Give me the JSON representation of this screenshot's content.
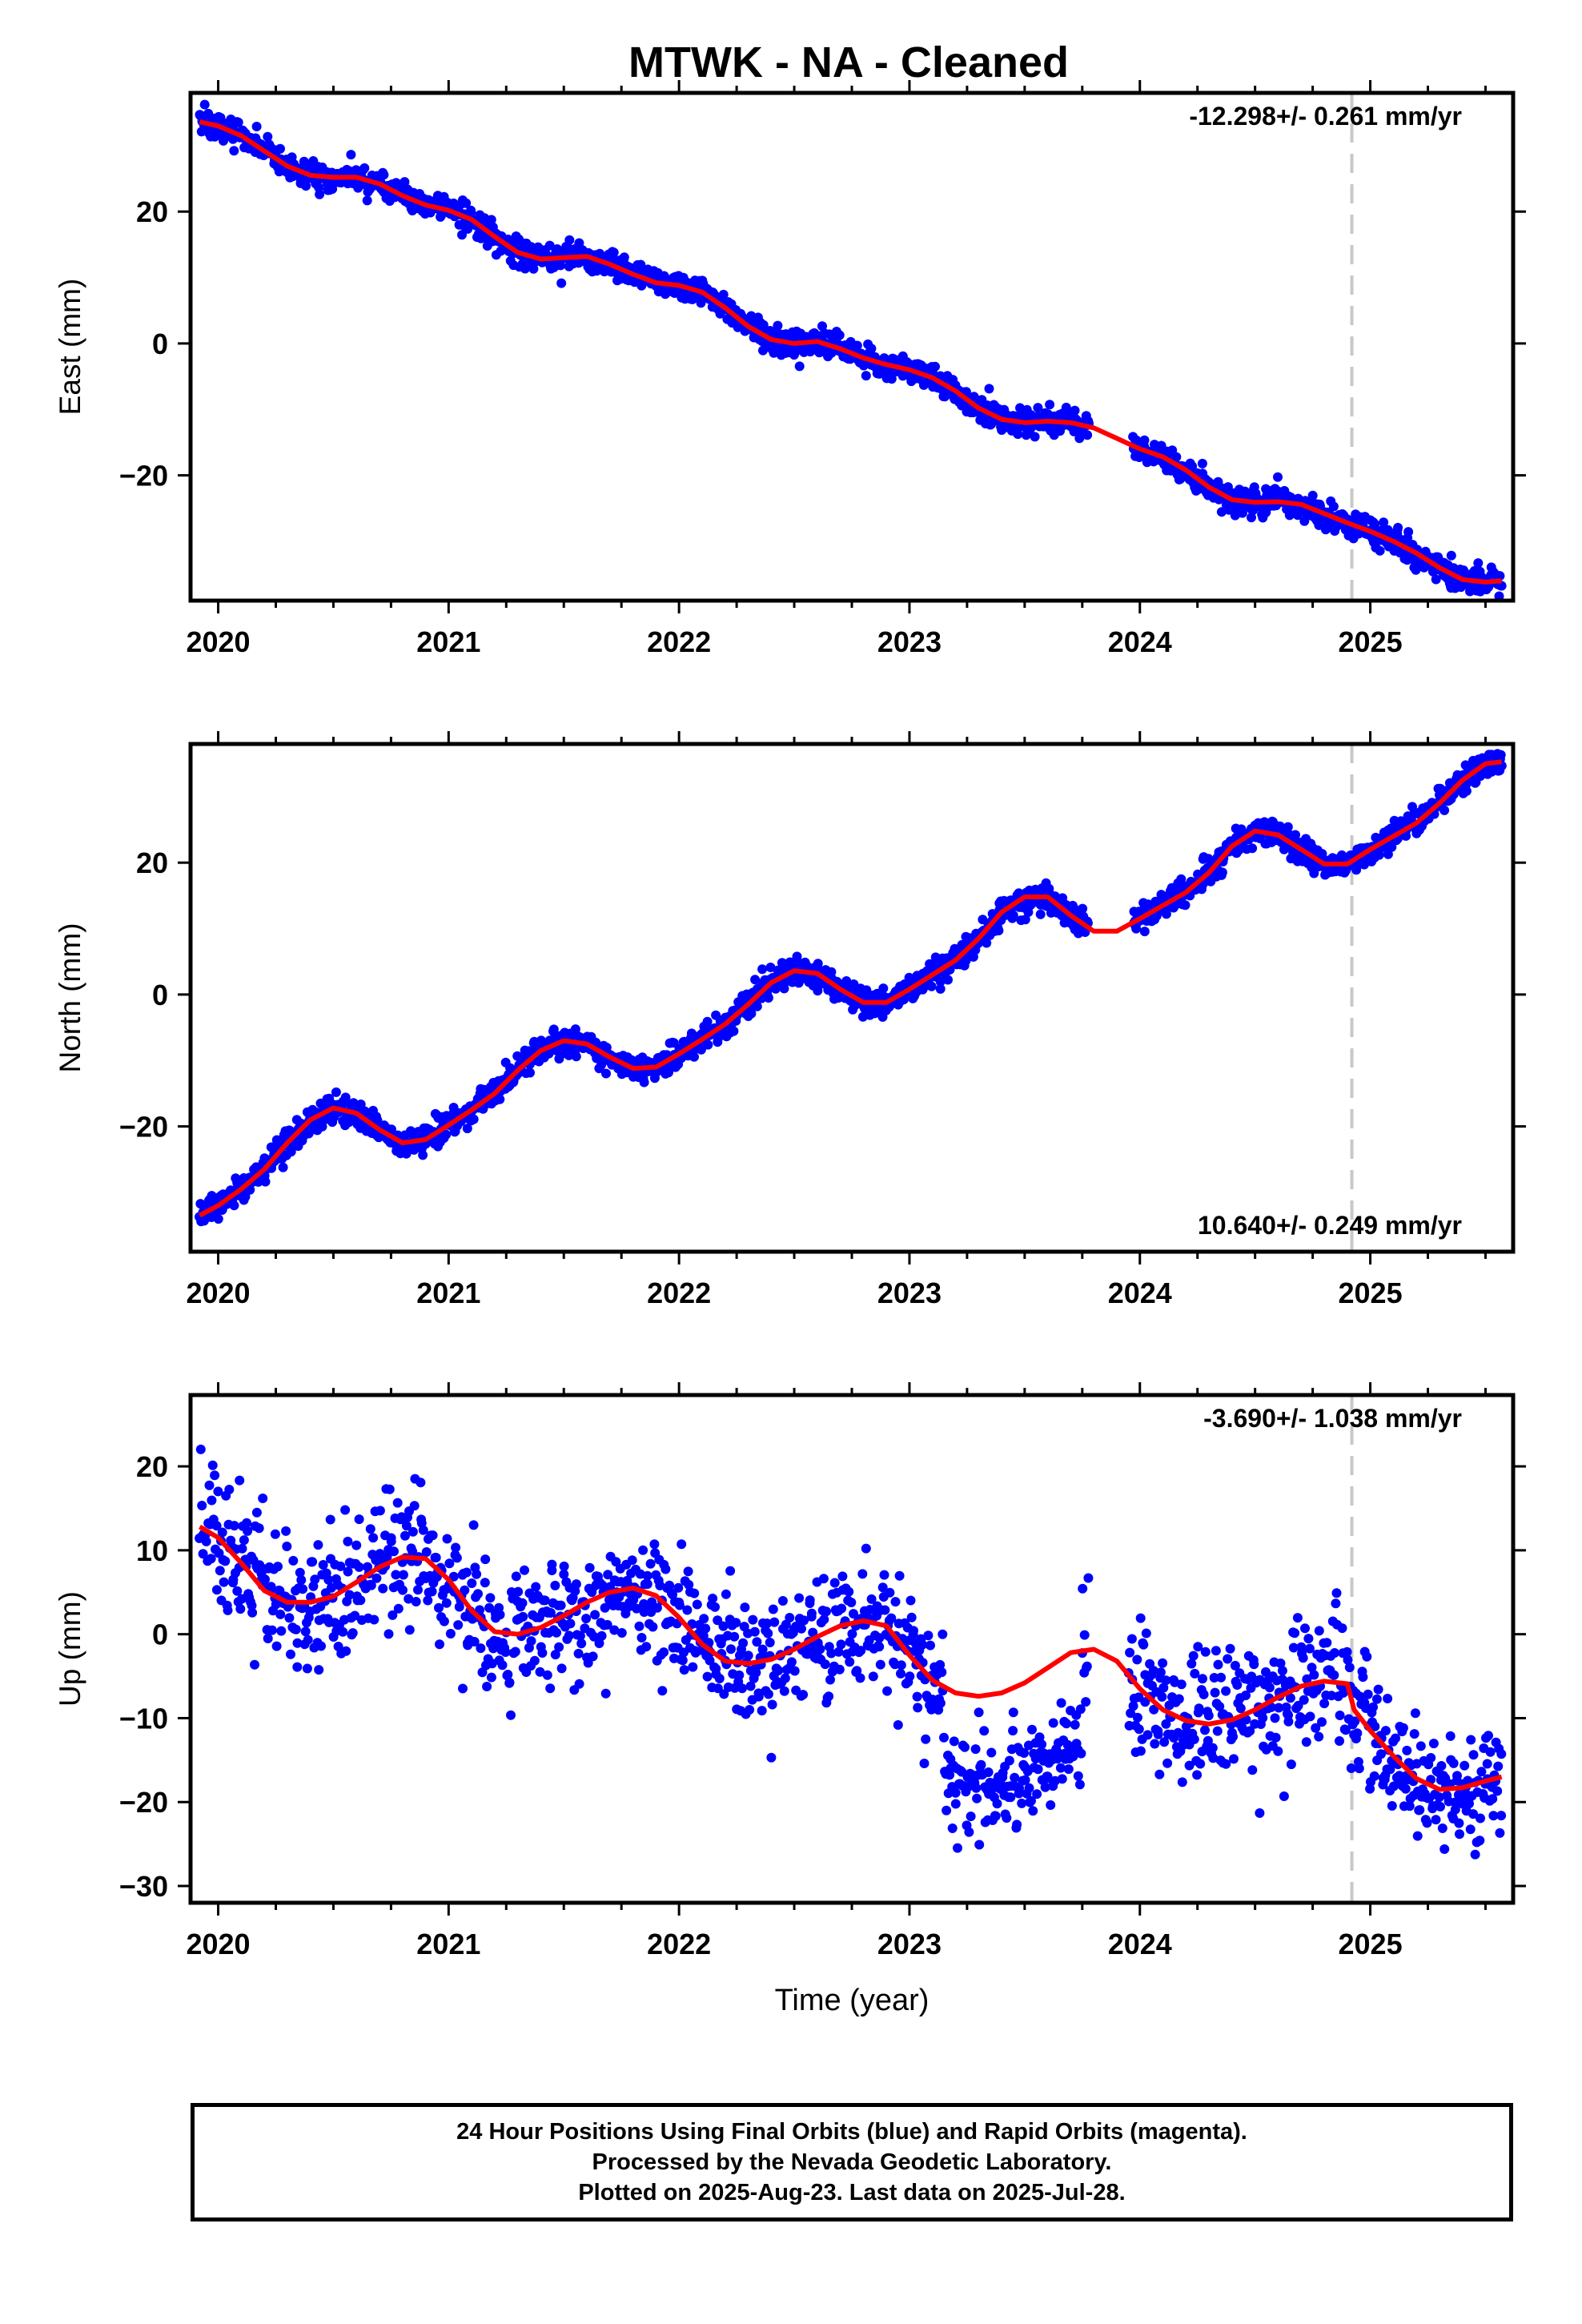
{
  "title": "MTWK  - NA - Cleaned",
  "footer": {
    "line1": "24 Hour Positions Using Final Orbits (blue) and Rapid Orbits (magenta).",
    "line2": "Processed by the Nevada Geodetic Laboratory.",
    "line3": "Plotted on 2025-Aug-23. Last data on 2025-Jul-28."
  },
  "colors": {
    "points": "#0000ff",
    "fit": "#ff0000",
    "marker_line": "#c8c8c8",
    "frame": "#000000"
  },
  "chart_data": [
    {
      "type": "scatter",
      "name": "east",
      "ylabel": "East (mm)",
      "xlabel": "",
      "xlim": [
        2019.88,
        2025.62
      ],
      "ylim": [
        -39,
        38
      ],
      "x_ticks": [
        2020,
        2021,
        2022,
        2023,
        2024,
        2025
      ],
      "y_ticks": [
        -20,
        0,
        20
      ],
      "rate_label": "-12.298+/- 0.261 mm/yr",
      "rate_position": "top-right",
      "vline_x": 2024.92,
      "data_range": [
        2019.92,
        2025.57
      ],
      "gap": [
        2023.78,
        2023.97
      ],
      "fit_curve": {
        "x": [
          2019.92,
          2020.0,
          2020.1,
          2020.2,
          2020.3,
          2020.4,
          2020.5,
          2020.6,
          2020.7,
          2020.8,
          2020.9,
          2021.0,
          2021.1,
          2021.2,
          2021.3,
          2021.4,
          2021.5,
          2021.6,
          2021.7,
          2021.8,
          2021.9,
          2022.0,
          2022.1,
          2022.2,
          2022.3,
          2022.4,
          2022.5,
          2022.6,
          2022.7,
          2022.8,
          2022.9,
          2023.0,
          2023.1,
          2023.2,
          2023.3,
          2023.4,
          2023.5,
          2023.6,
          2023.7,
          2023.8,
          2023.9,
          2024.0,
          2024.1,
          2024.2,
          2024.3,
          2024.4,
          2024.5,
          2024.6,
          2024.7,
          2024.8,
          2024.9,
          2025.0,
          2025.1,
          2025.2,
          2025.3,
          2025.4,
          2025.5,
          2025.57
        ],
        "y": [
          33.6,
          33.0,
          31.5,
          29.2,
          26.9,
          25.5,
          25.2,
          25.2,
          24.2,
          22.4,
          21.0,
          20.2,
          18.8,
          16.2,
          13.8,
          12.8,
          13.0,
          13.2,
          12.0,
          10.5,
          9.2,
          8.8,
          7.8,
          5.4,
          2.6,
          0.6,
          0.0,
          0.3,
          -0.8,
          -2.2,
          -3.2,
          -4.0,
          -5.2,
          -7.2,
          -9.8,
          -11.5,
          -12.0,
          -11.8,
          -12.0,
          -12.8,
          -14.4,
          -16.0,
          -17.2,
          -19.2,
          -21.8,
          -23.7,
          -24.1,
          -24.0,
          -24.4,
          -25.8,
          -27.2,
          -28.5,
          -30.0,
          -31.8,
          -34.0,
          -35.8,
          -36.2,
          -36.0
        ]
      },
      "points": {
        "count": 1900,
        "scatter_mm": 1.0
      }
    },
    {
      "type": "scatter",
      "name": "north",
      "ylabel": "North (mm)",
      "xlabel": "",
      "xlim": [
        2019.88,
        2025.62
      ],
      "ylim": [
        -39,
        38
      ],
      "x_ticks": [
        2020,
        2021,
        2022,
        2023,
        2024,
        2025
      ],
      "y_ticks": [
        -20,
        0,
        20
      ],
      "rate_label": "10.640+/- 0.249 mm/yr",
      "rate_position": "bottom-right",
      "vline_x": 2024.92,
      "data_range": [
        2019.92,
        2025.57
      ],
      "gap": [
        2023.78,
        2023.97
      ],
      "fit_curve": {
        "x": [
          2019.92,
          2020.0,
          2020.1,
          2020.2,
          2020.3,
          2020.4,
          2020.5,
          2020.6,
          2020.7,
          2020.8,
          2020.9,
          2021.0,
          2021.1,
          2021.2,
          2021.3,
          2021.4,
          2021.5,
          2021.6,
          2021.7,
          2021.8,
          2021.9,
          2022.0,
          2022.1,
          2022.2,
          2022.3,
          2022.4,
          2022.5,
          2022.6,
          2022.7,
          2022.8,
          2022.9,
          2023.0,
          2023.1,
          2023.2,
          2023.3,
          2023.4,
          2023.5,
          2023.6,
          2023.7,
          2023.8,
          2023.9,
          2024.0,
          2024.1,
          2024.2,
          2024.3,
          2024.4,
          2024.5,
          2024.6,
          2024.7,
          2024.8,
          2024.9,
          2025.0,
          2025.1,
          2025.2,
          2025.3,
          2025.4,
          2025.5,
          2025.57
        ],
        "y": [
          -33.5,
          -32.0,
          -29.5,
          -26.5,
          -22.5,
          -19.0,
          -17.2,
          -18.0,
          -20.5,
          -22.5,
          -22.0,
          -19.8,
          -17.5,
          -15.0,
          -11.5,
          -8.5,
          -7.0,
          -7.5,
          -9.5,
          -11.2,
          -11.0,
          -9.0,
          -6.8,
          -4.5,
          -1.5,
          1.8,
          3.6,
          3.2,
          0.8,
          -1.2,
          -1.2,
          0.8,
          3.0,
          5.2,
          8.5,
          12.5,
          14.8,
          14.8,
          12.0,
          9.6,
          9.6,
          11.5,
          13.5,
          15.5,
          18.5,
          22.5,
          24.8,
          24.2,
          22.0,
          19.8,
          19.8,
          22.0,
          24.0,
          26.0,
          29.0,
          32.5,
          35.0,
          35.3
        ]
      },
      "points": {
        "count": 1900,
        "scatter_mm": 1.0
      }
    },
    {
      "type": "scatter",
      "name": "up",
      "ylabel": "Up (mm)",
      "xlabel": "Time (year)",
      "xlim": [
        2019.88,
        2025.62
      ],
      "ylim": [
        -32,
        28.5
      ],
      "x_ticks": [
        2020,
        2021,
        2022,
        2023,
        2024,
        2025
      ],
      "y_ticks": [
        -30,
        -20,
        -10,
        0,
        10,
        20
      ],
      "rate_label": "-3.690+/- 1.038 mm/yr",
      "rate_position": "top-right",
      "vline_x": 2024.92,
      "data_range": [
        2019.92,
        2025.57
      ],
      "gap": [
        2023.78,
        2023.95
      ],
      "fit_curve": {
        "x": [
          2019.92,
          2020.0,
          2020.1,
          2020.2,
          2020.3,
          2020.4,
          2020.5,
          2020.6,
          2020.7,
          2020.8,
          2020.9,
          2021.0,
          2021.1,
          2021.2,
          2021.3,
          2021.4,
          2021.5,
          2021.6,
          2021.7,
          2021.8,
          2021.9,
          2022.0,
          2022.1,
          2022.2,
          2022.3,
          2022.4,
          2022.5,
          2022.6,
          2022.7,
          2022.8,
          2022.9,
          2023.0,
          2023.1,
          2023.2,
          2023.3,
          2023.4,
          2023.5,
          2023.6,
          2023.7,
          2023.8,
          2023.9,
          2024.0,
          2024.1,
          2024.2,
          2024.3,
          2024.4,
          2024.5,
          2024.6,
          2024.7,
          2024.8,
          2024.9,
          2024.93,
          2025.0,
          2025.1,
          2025.2,
          2025.3,
          2025.4,
          2025.5,
          2025.57
        ],
        "y": [
          12.8,
          11.5,
          8.5,
          5.2,
          3.8,
          3.8,
          4.5,
          6.2,
          8.0,
          9.2,
          9.0,
          6.5,
          2.8,
          0.3,
          0.0,
          0.8,
          2.2,
          3.8,
          5.0,
          5.5,
          4.6,
          2.0,
          -1.2,
          -3.2,
          -3.5,
          -3.0,
          -1.8,
          -0.3,
          1.0,
          1.6,
          1.0,
          -2.5,
          -5.5,
          -7.0,
          -7.4,
          -7.0,
          -5.8,
          -4.0,
          -2.2,
          -1.8,
          -3.2,
          -6.5,
          -9.0,
          -10.3,
          -10.7,
          -10.2,
          -9.0,
          -7.5,
          -6.2,
          -5.6,
          -5.9,
          -9.0,
          -11.5,
          -14.5,
          -17.2,
          -18.5,
          -18.3,
          -17.5,
          -17.0
        ]
      },
      "points": {
        "count": 1500,
        "scatter_mm": 3.8
      }
    }
  ]
}
